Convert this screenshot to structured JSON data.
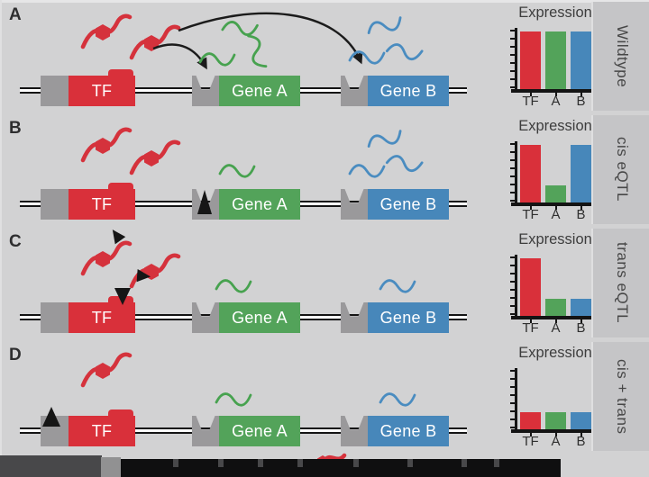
{
  "palette": {
    "background": "#d2d2d3",
    "sidebar": "#c5c5c7",
    "red": "#d9303a",
    "green": "#53a35a",
    "blue": "#4787ba",
    "gray_box": "#9a999b",
    "dark": "#1d1d1d"
  },
  "figure": {
    "panels": [
      {
        "label": "A",
        "condition": "Wildtype",
        "genes": {
          "tf": "TF",
          "gene_a": "Gene A",
          "gene_b": "Gene B"
        },
        "tf_proteins": 2,
        "rna": {
          "gene_a": 3,
          "gene_b": 3
        },
        "mutation": "none",
        "arrows": [
          "tf-protein-to-gene-a-promoter",
          "tf-protein-to-gene-b-promoter"
        ],
        "chart": {
          "title": "Expression",
          "categories": [
            "TF",
            "A",
            "B"
          ],
          "values": [
            1.0,
            1.0,
            1.0
          ]
        }
      },
      {
        "label": "B",
        "condition": "cis eQTL",
        "genes": {
          "tf": "TF",
          "gene_a": "Gene A",
          "gene_b": "Gene B"
        },
        "tf_proteins": 2,
        "rna": {
          "gene_a": 1,
          "gene_b": 3
        },
        "mutation": "gene-a-promoter",
        "arrows": [],
        "chart": {
          "title": "Expression",
          "categories": [
            "TF",
            "A",
            "B"
          ],
          "values": [
            1.0,
            0.3,
            1.0
          ]
        }
      },
      {
        "label": "C",
        "condition": "trans eQTL",
        "genes": {
          "tf": "TF",
          "gene_a": "Gene A",
          "gene_b": "Gene B"
        },
        "tf_proteins": 2,
        "rna": {
          "gene_a": 1,
          "gene_b": 1
        },
        "mutation": "tf-coding-sequence",
        "arrows": [],
        "chart": {
          "title": "Expression",
          "categories": [
            "TF",
            "A",
            "B"
          ],
          "values": [
            1.0,
            0.3,
            0.3
          ]
        }
      },
      {
        "label": "D",
        "condition": "cis + trans",
        "genes": {
          "tf": "TF",
          "gene_a": "Gene A",
          "gene_b": "Gene B"
        },
        "tf_proteins": 1,
        "rna": {
          "gene_a": 1,
          "gene_b": 1
        },
        "mutation": "tf-promoter",
        "arrows": [],
        "chart": {
          "title": "Expression",
          "categories": [
            "TF",
            "A",
            "B"
          ],
          "values": [
            0.3,
            0.3,
            0.3
          ]
        }
      }
    ]
  },
  "chart_data": [
    {
      "type": "bar",
      "title": "Expression",
      "panel": "A",
      "condition": "Wildtype",
      "categories": [
        "TF",
        "A",
        "B"
      ],
      "values": [
        1.0,
        1.0,
        1.0
      ],
      "xlabel": "",
      "ylabel": "",
      "ylim": [
        0,
        1.1
      ],
      "units": "relative expression",
      "bar_colors": [
        "#d9303a",
        "#53a35a",
        "#4787ba"
      ],
      "legend_position": "none"
    },
    {
      "type": "bar",
      "title": "Expression",
      "panel": "B",
      "condition": "cis eQTL",
      "categories": [
        "TF",
        "A",
        "B"
      ],
      "values": [
        1.0,
        0.3,
        1.0
      ],
      "xlabel": "",
      "ylabel": "",
      "ylim": [
        0,
        1.1
      ],
      "units": "relative expression",
      "bar_colors": [
        "#d9303a",
        "#53a35a",
        "#4787ba"
      ],
      "legend_position": "none"
    },
    {
      "type": "bar",
      "title": "Expression",
      "panel": "C",
      "condition": "trans eQTL",
      "categories": [
        "TF",
        "A",
        "B"
      ],
      "values": [
        1.0,
        0.3,
        0.3
      ],
      "xlabel": "",
      "ylabel": "",
      "ylim": [
        0,
        1.1
      ],
      "units": "relative expression",
      "bar_colors": [
        "#d9303a",
        "#53a35a",
        "#4787ba"
      ],
      "legend_position": "none"
    },
    {
      "type": "bar",
      "title": "Expression",
      "panel": "D",
      "condition": "cis + trans",
      "categories": [
        "TF",
        "A",
        "B"
      ],
      "values": [
        0.3,
        0.3,
        0.3
      ],
      "xlabel": "",
      "ylabel": "",
      "ylim": [
        0,
        1.1
      ],
      "units": "relative expression",
      "bar_colors": [
        "#d9303a",
        "#53a35a",
        "#4787ba"
      ],
      "legend_position": "none"
    }
  ],
  "bottom_legend": {
    "clipped": true,
    "items": [
      "promoter-box-icon",
      "tf-protein-icon"
    ]
  }
}
